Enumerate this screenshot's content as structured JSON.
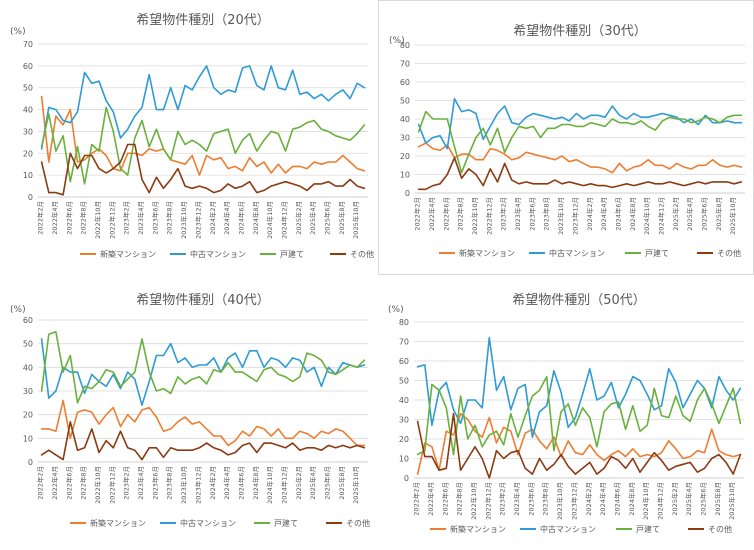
{
  "colors": {
    "新築マンション": "#ED7D31",
    "中古マンション": "#2E9BD6",
    "戸建て": "#6AB03D",
    "その他": "#8B3A12"
  },
  "chart_data": [
    {
      "type": "line",
      "title": "希望物件種別（20代）",
      "unit_label": "(%)",
      "ylim": [
        0,
        70
      ],
      "yticks": [
        "0",
        "10",
        "20",
        "30",
        "40",
        "50",
        "60",
        "70"
      ],
      "x_labels": [
        "2022年2月",
        "2022年4月",
        "2022年6月",
        "2022年8月",
        "2022年10月",
        "2022年12月",
        "2023年2月",
        "2023年4月",
        "2023年6月",
        "2023年8月",
        "2023年10月",
        "2023年12月",
        "2024年2月",
        "2024年4月",
        "2024年6月",
        "2024年8月",
        "2024年10月",
        "2024年12月",
        "2025年2月",
        "2025年4月",
        "2025年6月",
        "2025年8月",
        "2025年10月"
      ],
      "n_points": 46,
      "series": [
        {
          "name": "新築マンション",
          "values": [
            46,
            16,
            37,
            33,
            40,
            16,
            17,
            20,
            22,
            19,
            13,
            12,
            20,
            20,
            19,
            22,
            21,
            22,
            17,
            16,
            15,
            19,
            10,
            19,
            17,
            18,
            13,
            14,
            12,
            18,
            14,
            16,
            11,
            15,
            11,
            14,
            14,
            13,
            16,
            15,
            16,
            16,
            19,
            16,
            13,
            12
          ]
        },
        {
          "name": "中古マンション",
          "values": [
            22,
            41,
            40,
            35,
            34,
            39,
            57,
            52,
            53,
            44,
            39,
            27,
            31,
            37,
            41,
            56,
            40,
            40,
            50,
            40,
            51,
            49,
            55,
            60,
            50,
            47,
            49,
            48,
            59,
            60,
            51,
            49,
            60,
            50,
            49,
            58,
            47,
            48,
            45,
            47,
            44,
            47,
            49,
            45,
            52,
            50
          ]
        },
        {
          "name": "戸建て",
          "values": [
            23,
            38,
            21,
            28,
            7,
            23,
            6,
            24,
            21,
            41,
            30,
            13,
            10,
            27,
            35,
            23,
            31,
            22,
            17,
            30,
            24,
            26,
            24,
            21,
            29,
            30,
            31,
            20,
            26,
            29,
            21,
            26,
            30,
            29,
            21,
            31,
            32,
            34,
            35,
            31,
            30,
            28,
            27,
            26,
            29,
            33
          ]
        },
        {
          "name": "その他",
          "values": [
            16,
            2,
            2,
            1,
            20,
            13,
            19,
            19,
            13,
            11,
            13,
            16,
            24,
            24,
            8,
            2,
            9,
            4,
            8,
            13,
            5,
            4,
            5,
            4,
            2,
            3,
            6,
            4,
            5,
            7,
            2,
            3,
            5,
            6,
            7,
            6,
            5,
            3,
            6,
            6,
            7,
            5,
            5,
            8,
            5,
            4
          ]
        }
      ]
    },
    {
      "type": "line",
      "title": "希望物件種別（30代）",
      "unit_label": "(%)",
      "ylim": [
        0,
        80
      ],
      "yticks": [
        "0",
        "10",
        "20",
        "30",
        "40",
        "50",
        "60",
        "70",
        "80"
      ],
      "x_labels": [
        "2022年2月",
        "2022年4月",
        "2022年6月",
        "2022年8月",
        "2022年10月",
        "2022年12月",
        "2023年2月",
        "2023年4月",
        "2023年6月",
        "2023年8月",
        "2023年10月",
        "2023年12月",
        "2024年2月",
        "2024年4月",
        "2024年6月",
        "2024年8月",
        "2024年10月",
        "2024年12月",
        "2025年2月",
        "2025年4月",
        "2025年6月",
        "2025年8月",
        "2025年10月"
      ],
      "n_points": 46,
      "series": [
        {
          "name": "新築マンション",
          "values": [
            25,
            27,
            24,
            23,
            26,
            19,
            21,
            21,
            18,
            18,
            24,
            23,
            21,
            18,
            19,
            22,
            21,
            20,
            19,
            18,
            20,
            17,
            18,
            16,
            14,
            14,
            13,
            11,
            16,
            12,
            14,
            15,
            18,
            15,
            15,
            13,
            16,
            14,
            13,
            15,
            15,
            18,
            15,
            14,
            15,
            14
          ]
        },
        {
          "name": "中古マンション",
          "values": [
            37,
            27,
            30,
            31,
            24,
            51,
            44,
            45,
            43,
            29,
            36,
            43,
            47,
            38,
            37,
            41,
            43,
            42,
            41,
            40,
            41,
            39,
            43,
            40,
            42,
            42,
            41,
            47,
            42,
            40,
            43,
            41,
            41,
            42,
            43,
            42,
            41,
            38,
            40,
            37,
            42,
            38,
            38,
            39,
            38,
            38
          ]
        },
        {
          "name": "戸建て",
          "values": [
            33,
            44,
            40,
            40,
            40,
            25,
            11,
            21,
            30,
            35,
            26,
            35,
            22,
            30,
            36,
            35,
            36,
            30,
            35,
            35,
            37,
            37,
            36,
            36,
            38,
            37,
            36,
            40,
            38,
            38,
            37,
            39,
            36,
            34,
            39,
            41,
            40,
            40,
            38,
            39,
            41,
            40,
            38,
            41,
            42,
            42
          ]
        },
        {
          "name": "その他",
          "values": [
            2,
            2,
            4,
            5,
            10,
            19,
            8,
            13,
            10,
            4,
            13,
            6,
            16,
            7,
            5,
            6,
            5,
            5,
            5,
            7,
            5,
            6,
            5,
            4,
            5,
            4,
            4,
            3,
            4,
            5,
            4,
            5,
            6,
            5,
            5,
            6,
            5,
            4,
            5,
            6,
            5,
            6,
            6,
            6,
            5,
            6
          ]
        }
      ]
    },
    {
      "type": "line",
      "title": "希望物件種別（40代）",
      "unit_label": "(%)",
      "ylim": [
        0,
        60
      ],
      "yticks": [
        "0",
        "10",
        "20",
        "30",
        "40",
        "50",
        "60"
      ],
      "x_labels": [
        "2022年2月",
        "2022年4月",
        "2022年6月",
        "2022年8月",
        "2022年10月",
        "2022年12月",
        "2023年2月",
        "2023年4月",
        "2023年6月",
        "2023年8月",
        "2023年10月",
        "2023年12月",
        "2024年2月",
        "2024年4月",
        "2024年6月",
        "2024年8月",
        "2024年10月",
        "2024年12月",
        "2025年2月",
        "2025年4月",
        "2025年6月",
        "2025年8月",
        "2025年10月"
      ],
      "n_points": 46,
      "series": [
        {
          "name": "新築マンション",
          "values": [
            14,
            14,
            13,
            26,
            10,
            21,
            22,
            21,
            16,
            20,
            23,
            15,
            20,
            17,
            22,
            23,
            19,
            13,
            14,
            17,
            19,
            16,
            17,
            14,
            11,
            11,
            7,
            9,
            13,
            11,
            15,
            14,
            11,
            14,
            10,
            10,
            13,
            12,
            10,
            13,
            12,
            14,
            13,
            10,
            7,
            7
          ]
        },
        {
          "name": "中古マンション",
          "values": [
            52,
            27,
            30,
            40,
            38,
            38,
            29,
            37,
            34,
            32,
            37,
            31,
            38,
            35,
            24,
            34,
            45,
            45,
            50,
            42,
            44,
            40,
            41,
            41,
            44,
            38,
            44,
            46,
            40,
            47,
            47,
            40,
            44,
            43,
            40,
            44,
            43,
            38,
            40,
            32,
            40,
            37,
            42,
            41,
            40,
            41
          ]
        },
        {
          "name": "戸建て",
          "values": [
            30,
            54,
            55,
            38,
            45,
            25,
            32,
            31,
            34,
            39,
            38,
            32,
            35,
            38,
            52,
            38,
            30,
            31,
            29,
            36,
            33,
            35,
            36,
            33,
            39,
            38,
            42,
            38,
            38,
            36,
            34,
            39,
            40,
            37,
            36,
            34,
            36,
            46,
            45,
            43,
            38,
            37,
            39,
            41,
            40,
            43
          ]
        },
        {
          "name": "その他",
          "values": [
            3,
            5,
            3,
            1,
            17,
            5,
            6,
            14,
            4,
            9,
            6,
            13,
            6,
            5,
            1,
            6,
            6,
            2,
            6,
            5,
            5,
            5,
            6,
            8,
            6,
            5,
            3,
            4,
            7,
            8,
            4,
            8,
            8,
            7,
            6,
            8,
            5,
            6,
            6,
            5,
            7,
            6,
            7,
            6,
            7,
            6
          ]
        }
      ]
    },
    {
      "type": "line",
      "title": "希望物件種別（50代）",
      "unit_label": "(%)",
      "ylim": [
        0,
        80
      ],
      "yticks": [
        "0",
        "10",
        "20",
        "30",
        "40",
        "50",
        "60",
        "70",
        "80"
      ],
      "x_labels": [
        "2022年2月",
        "2022年4月",
        "2022年6月",
        "2022年8月",
        "2022年10月",
        "2022年12月",
        "2023年2月",
        "2023年4月",
        "2023年6月",
        "2023年8月",
        "2023年10月",
        "2023年12月",
        "2024年2月",
        "2024年4月",
        "2024年6月",
        "2024年8月",
        "2024年10月",
        "2024年12月",
        "2025年2月",
        "2025年4月",
        "2025年6月",
        "2025年8月",
        "2025年10月"
      ],
      "n_points": 46,
      "series": [
        {
          "name": "新築マンション",
          "values": [
            2,
            18,
            16,
            4,
            24,
            22,
            33,
            30,
            24,
            21,
            31,
            18,
            26,
            24,
            12,
            23,
            25,
            19,
            15,
            21,
            11,
            19,
            13,
            12,
            17,
            12,
            9,
            12,
            14,
            11,
            15,
            11,
            12,
            11,
            13,
            19,
            15,
            10,
            11,
            14,
            13,
            25,
            14,
            12,
            11,
            12
          ]
        },
        {
          "name": "中古マンション",
          "values": [
            57,
            58,
            27,
            45,
            49,
            35,
            28,
            40,
            40,
            36,
            72,
            45,
            52,
            35,
            46,
            48,
            21,
            34,
            37,
            55,
            44,
            26,
            31,
            43,
            56,
            40,
            42,
            49,
            36,
            43,
            52,
            50,
            43,
            35,
            37,
            56,
            49,
            36,
            43,
            50,
            46,
            36,
            52,
            45,
            40,
            46
          ]
        },
        {
          "name": "戸建て",
          "values": [
            12,
            14,
            48,
            45,
            36,
            12,
            42,
            20,
            27,
            16,
            22,
            24,
            17,
            33,
            21,
            32,
            42,
            45,
            52,
            14,
            34,
            38,
            27,
            36,
            31,
            16,
            34,
            38,
            39,
            25,
            37,
            24,
            27,
            46,
            32,
            31,
            42,
            32,
            29,
            40,
            46,
            38,
            28,
            37,
            46,
            28
          ]
        },
        {
          "name": "その他",
          "values": [
            29,
            11,
            11,
            4,
            5,
            33,
            4,
            10,
            16,
            10,
            0,
            14,
            10,
            13,
            14,
            5,
            2,
            10,
            4,
            7,
            12,
            6,
            2,
            5,
            8,
            2,
            5,
            11,
            9,
            5,
            10,
            3,
            8,
            13,
            9,
            4,
            6,
            7,
            8,
            3,
            5,
            10,
            12,
            8,
            2,
            12
          ]
        }
      ]
    }
  ]
}
